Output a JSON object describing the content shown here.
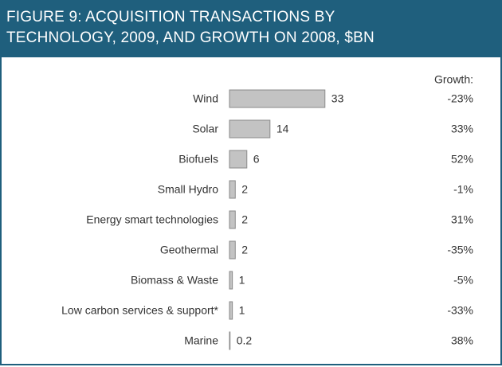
{
  "chart_data": {
    "type": "bar",
    "orientation": "horizontal",
    "title": "FIGURE 9: ACQUISITION TRANSACTIONS BY TECHNOLOGY, 2009, AND GROWTH ON 2008, $BN",
    "categories": [
      "Wind",
      "Solar",
      "Biofuels",
      "Small Hydro",
      "Energy smart technologies",
      "Geothermal",
      "Biomass & Waste",
      "Low carbon services & support*",
      "Marine"
    ],
    "values": [
      33,
      14,
      6,
      2,
      2,
      2,
      1,
      1,
      0.2
    ],
    "color": "#c3c3c3",
    "growth": {
      "name": "Growth:",
      "values": [
        -23,
        33,
        52,
        -1,
        31,
        -35,
        -5,
        -33,
        38
      ],
      "value_labels": [
        "-23%",
        "33%",
        "52%",
        "-1%",
        "31%",
        "-35%",
        "-5%",
        "-33%",
        "38%"
      ]
    }
  }
}
